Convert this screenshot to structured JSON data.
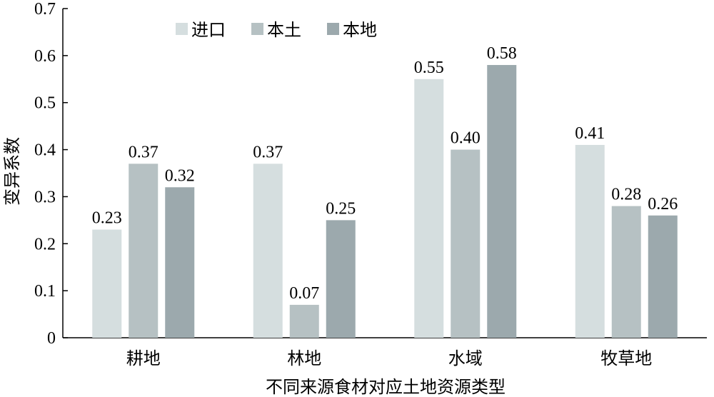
{
  "chart_data": {
    "type": "bar",
    "title": "",
    "xlabel": "不同来源食材对应土地资源类型",
    "ylabel": "变异系数",
    "ylim": [
      0,
      0.7
    ],
    "yticks": [
      "0",
      "0.1",
      "0.2",
      "0.3",
      "0.4",
      "0.5",
      "0.6",
      "0.7"
    ],
    "categories": [
      "耕地",
      "林地",
      "水域",
      "牧草地"
    ],
    "series": [
      {
        "name": "进口",
        "values": [
          0.23,
          0.37,
          0.55,
          0.41
        ],
        "labels": [
          "0.23",
          "0.37",
          "0.55",
          "0.41"
        ],
        "color": "#d5dedf"
      },
      {
        "name": "本土",
        "values": [
          0.37,
          0.07,
          0.4,
          0.28
        ],
        "labels": [
          "0.37",
          "0.07",
          "0.40",
          "0.28"
        ],
        "color": "#b6c1c3"
      },
      {
        "name": "本地",
        "values": [
          0.32,
          0.25,
          0.58,
          0.26
        ],
        "labels": [
          "0.32",
          "0.25",
          "0.58",
          "0.26"
        ],
        "color": "#9ca9ad"
      }
    ],
    "legend_position": "top-left",
    "grid": false
  }
}
